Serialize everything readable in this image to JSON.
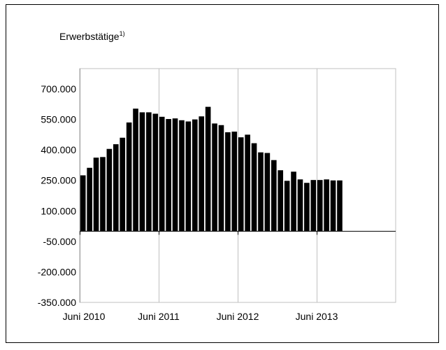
{
  "chart_data": {
    "type": "bar",
    "title": "Erwerbstätige",
    "title_footnote": "1)",
    "xlabel": "",
    "ylabel": "",
    "ylim": [
      -350000,
      800000
    ],
    "y_ticks": [
      700000,
      550000,
      400000,
      250000,
      100000,
      -50000,
      -200000,
      -350000
    ],
    "y_tick_labels": [
      "700.000",
      "550.000",
      "400.000",
      "250.000",
      "100.000",
      "-50.000",
      "-200.000",
      "-350.000"
    ],
    "x_ticks": [
      {
        "index": 0,
        "label": "Juni 2010"
      },
      {
        "index": 12,
        "label": "Juni 2011"
      },
      {
        "index": 24,
        "label": "Juni 2012"
      },
      {
        "index": 36,
        "label": "Juni 2013"
      }
    ],
    "grid": true,
    "legend": "none",
    "bar_color": "#000000",
    "values": [
      275000,
      312000,
      362000,
      365000,
      405000,
      428000,
      460000,
      535000,
      603000,
      585000,
      585000,
      578000,
      563000,
      552000,
      555000,
      546000,
      540000,
      550000,
      565000,
      612000,
      530000,
      522000,
      487000,
      490000,
      462000,
      475000,
      433000,
      388000,
      385000,
      350000,
      300000,
      248000,
      293000,
      255000,
      238000,
      252000,
      252000,
      255000,
      250000,
      250000
    ]
  }
}
